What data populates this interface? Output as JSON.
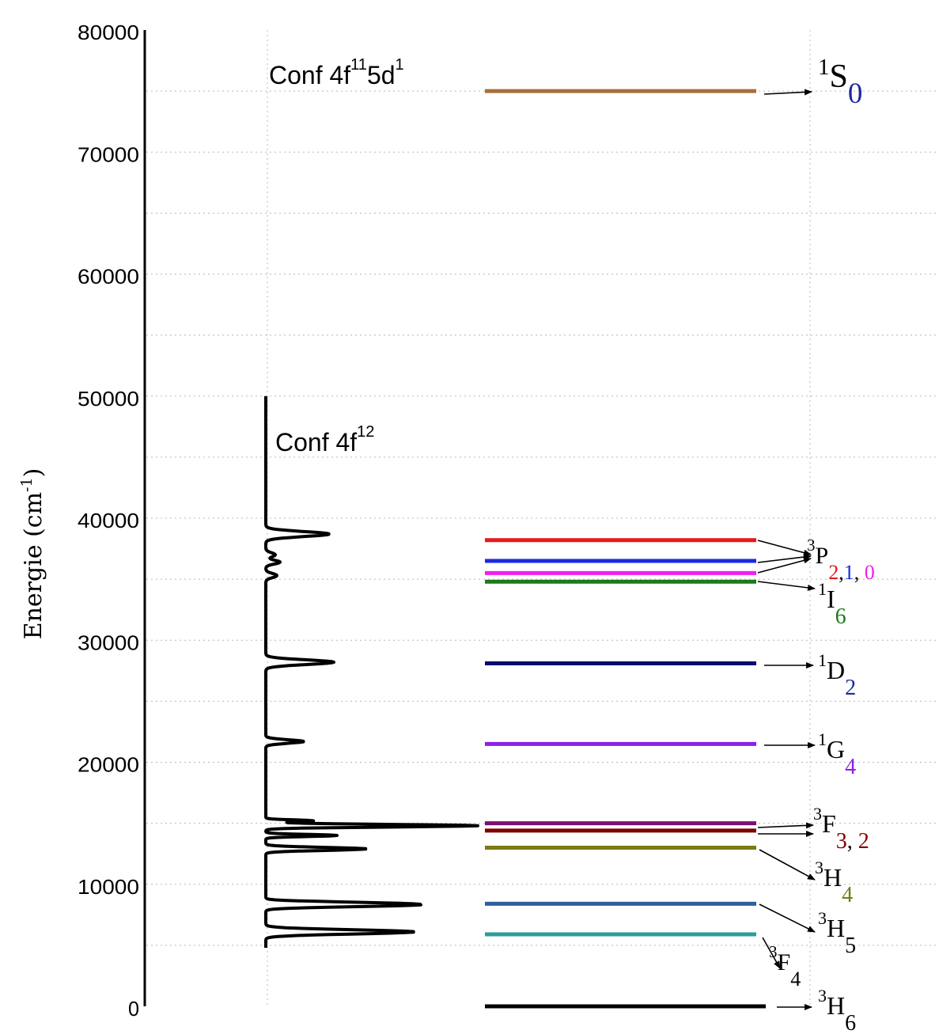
{
  "y_axis": {
    "label": "Energie (cm",
    "label_exp": "-1",
    "label_close": ")",
    "min": 0,
    "max": 80000,
    "ticks": [
      "0",
      "10000",
      "20000",
      "30000",
      "40000",
      "50000",
      "60000",
      "70000",
      "80000"
    ]
  },
  "configurations": [
    {
      "text": "Conf  4f",
      "parts": [
        {
          "sup": "11"
        },
        {
          "text": "5d"
        },
        {
          "sup": "1"
        }
      ]
    },
    {
      "text": "Conf  4f",
      "parts": [
        {
          "sup": "12"
        }
      ]
    }
  ],
  "levels": [
    {
      "energy": 75000,
      "color": "#a5703a"
    },
    {
      "energy": 38200,
      "color": "#e8181c"
    },
    {
      "energy": 36500,
      "color": "#1a2ae0"
    },
    {
      "energy": 35500,
      "color": "#f01ef0"
    },
    {
      "energy": 34800,
      "color": "#1b7a1b"
    },
    {
      "energy": 28100,
      "color": "#0a0a6e"
    },
    {
      "energy": 21500,
      "color": "#8a20e8"
    },
    {
      "energy": 15000,
      "color": "#7a1070"
    },
    {
      "energy": 14400,
      "color": "#800000"
    },
    {
      "energy": 13000,
      "color": "#7a7a14"
    },
    {
      "energy": 8400,
      "color": "#2e5fa0"
    },
    {
      "energy": 5900,
      "color": "#2a9e9a"
    },
    {
      "energy": 0,
      "color": "#000000"
    }
  ],
  "terms": [
    {
      "sup": "1",
      "main": "S",
      "subs": [
        {
          "text": "0",
          "color": "#1a2aa0"
        }
      ]
    },
    {
      "sup": "3",
      "main": "P",
      "subs": [
        {
          "text": "2",
          "color": "#e8181c"
        },
        {
          "text": ",",
          "color": "#000000"
        },
        {
          "text": "1",
          "color": "#1a2ae0"
        },
        {
          "text": ", ",
          "color": "#000000"
        },
        {
          "text": "0",
          "color": "#f01ef0"
        }
      ]
    },
    {
      "sup": "1",
      "main": "I",
      "subs": [
        {
          "text": "6",
          "color": "#1b7a1b"
        }
      ]
    },
    {
      "sup": "1",
      "main": "D",
      "subs": [
        {
          "text": "2",
          "color": "#1a2aa0"
        }
      ]
    },
    {
      "sup": "1",
      "main": "G",
      "subs": [
        {
          "text": "4",
          "color": "#8a20e8"
        }
      ]
    },
    {
      "sup": "3",
      "main": "F",
      "subs": [
        {
          "text": "3",
          "color": "#800000"
        },
        {
          "text": ", ",
          "color": "#000000"
        },
        {
          "text": "2",
          "color": "#800000"
        }
      ]
    },
    {
      "sup": "3",
      "main": "H",
      "subs": [
        {
          "text": "4",
          "color": "#7a7a14"
        }
      ]
    },
    {
      "sup": "3",
      "main": "H",
      "subs": [
        {
          "text": "5",
          "color": "#000000"
        }
      ]
    },
    {
      "sup": "3",
      "main": "F",
      "subs": [
        {
          "text": "4",
          "color": "#000000"
        }
      ]
    },
    {
      "sup": "3",
      "main": "H",
      "subs": [
        {
          "text": "6",
          "color": "#000000"
        }
      ]
    }
  ],
  "spectrum": {
    "baseline": 0,
    "start_energy": 4800,
    "end_energy": 50000,
    "peaks": [
      {
        "energy": 6100,
        "height": 188,
        "width": 240
      },
      {
        "energy": 8300,
        "height": 178,
        "width": 200
      },
      {
        "energy": 8500,
        "height": 70,
        "width": 160
      },
      {
        "energy": 12900,
        "height": 128,
        "width": 170
      },
      {
        "energy": 14000,
        "height": 90,
        "width": 120
      },
      {
        "energy": 14800,
        "height": 268,
        "width": 150
      },
      {
        "energy": 15200,
        "height": 60,
        "width": 110
      },
      {
        "energy": 21700,
        "height": 48,
        "width": 200
      },
      {
        "energy": 28200,
        "height": 86,
        "width": 270
      },
      {
        "energy": 35300,
        "height": 14,
        "width": 240
      },
      {
        "energy": 36400,
        "height": 18,
        "width": 220
      },
      {
        "energy": 37000,
        "height": 12,
        "width": 240
      },
      {
        "energy": 38700,
        "height": 80,
        "width": 290
      }
    ]
  }
}
